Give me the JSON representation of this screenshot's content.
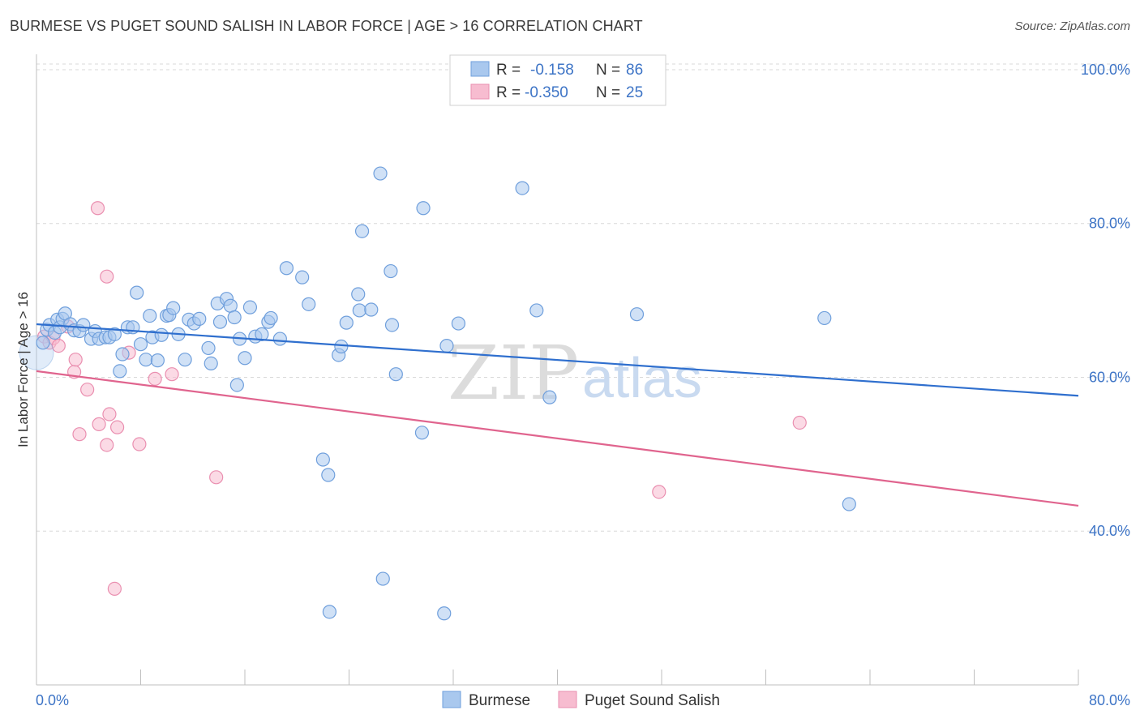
{
  "title": "BURMESE VS PUGET SOUND SALISH IN LABOR FORCE | AGE > 16 CORRELATION CHART",
  "source": "Source: ZipAtlas.com",
  "watermark": {
    "zip": "ZIP",
    "atlas": "atlas"
  },
  "colors": {
    "burmese_fill": "#a9c8ee",
    "burmese_stroke": "#6f9fdc",
    "burmese_line": "#2f6fce",
    "salish_fill": "#f7bcd0",
    "salish_stroke": "#ea8fb0",
    "salish_line": "#e0648e",
    "axis_label": "#3d74c6",
    "grid": "#d8d8d8"
  },
  "legend": {
    "items": [
      {
        "r_label": "R =",
        "r_value": "-0.158",
        "n_label": "N =",
        "n_value": "86"
      },
      {
        "r_label": "R =",
        "r_value": "-0.350",
        "n_label": "N =",
        "n_value": "25"
      }
    ]
  },
  "bottom_legend": {
    "burmese": "Burmese",
    "salish": "Puget Sound Salish"
  },
  "chart_data": {
    "type": "scatter",
    "title": "BURMESE VS PUGET SOUND SALISH IN LABOR FORCE | AGE > 16 CORRELATION CHART",
    "xlabel": "",
    "ylabel": "In Labor Force | Age > 16",
    "xlim": [
      0,
      80
    ],
    "ylim": [
      20,
      102
    ],
    "x_tick_labels": [
      "0.0%",
      "80.0%"
    ],
    "y_ticks": [
      40,
      60,
      80,
      100
    ],
    "y_tick_labels": [
      "40.0%",
      "60.0%",
      "80.0%",
      "100.0%"
    ],
    "grid": true,
    "legend_position": "top-center",
    "series": [
      {
        "name": "Burmese",
        "points": [
          [
            0.5,
            64.5
          ],
          [
            0.8,
            66.2
          ],
          [
            1.0,
            66.8
          ],
          [
            1.4,
            65.8
          ],
          [
            1.6,
            67.5
          ],
          [
            1.8,
            66.5
          ],
          [
            2.0,
            67.6
          ],
          [
            2.2,
            68.3
          ],
          [
            2.6,
            66.9
          ],
          [
            2.9,
            66.1
          ],
          [
            3.3,
            66.0
          ],
          [
            3.6,
            66.8
          ],
          [
            4.2,
            65.0
          ],
          [
            4.5,
            66.0
          ],
          [
            4.8,
            65.0
          ],
          [
            5.3,
            65.2
          ],
          [
            5.6,
            65.2
          ],
          [
            6.0,
            65.6
          ],
          [
            6.4,
            60.8
          ],
          [
            6.6,
            63.0
          ],
          [
            7.0,
            66.5
          ],
          [
            7.4,
            66.5
          ],
          [
            7.7,
            71.0
          ],
          [
            8.0,
            64.3
          ],
          [
            8.4,
            62.3
          ],
          [
            8.7,
            68.0
          ],
          [
            8.9,
            65.2
          ],
          [
            9.3,
            62.2
          ],
          [
            9.6,
            65.5
          ],
          [
            10.0,
            68.0
          ],
          [
            10.2,
            68.1
          ],
          [
            10.5,
            69.0
          ],
          [
            10.9,
            65.6
          ],
          [
            11.4,
            62.3
          ],
          [
            11.7,
            67.5
          ],
          [
            12.1,
            67.0
          ],
          [
            12.5,
            67.6
          ],
          [
            13.2,
            63.8
          ],
          [
            13.4,
            61.8
          ],
          [
            13.9,
            69.6
          ],
          [
            14.1,
            67.2
          ],
          [
            14.6,
            70.2
          ],
          [
            14.9,
            69.3
          ],
          [
            15.2,
            67.8
          ],
          [
            15.4,
            59.0
          ],
          [
            15.6,
            65.0
          ],
          [
            16.0,
            62.5
          ],
          [
            16.4,
            69.1
          ],
          [
            16.8,
            65.3
          ],
          [
            17.3,
            65.6
          ],
          [
            17.8,
            67.2
          ],
          [
            18.0,
            67.7
          ],
          [
            18.7,
            65.0
          ],
          [
            19.2,
            74.2
          ],
          [
            20.4,
            73.0
          ],
          [
            20.9,
            69.5
          ],
          [
            22.0,
            49.3
          ],
          [
            22.4,
            47.3
          ],
          [
            22.5,
            29.5
          ],
          [
            23.2,
            62.9
          ],
          [
            23.4,
            64.0
          ],
          [
            23.8,
            67.1
          ],
          [
            24.7,
            70.8
          ],
          [
            24.8,
            68.7
          ],
          [
            25.0,
            79.0
          ],
          [
            25.7,
            68.8
          ],
          [
            26.4,
            86.5
          ],
          [
            26.6,
            33.8
          ],
          [
            27.2,
            73.8
          ],
          [
            27.3,
            66.8
          ],
          [
            27.6,
            60.4
          ],
          [
            29.7,
            82.0
          ],
          [
            29.6,
            52.8
          ],
          [
            31.3,
            29.3
          ],
          [
            31.5,
            64.1
          ],
          [
            32.4,
            67.0
          ],
          [
            37.3,
            84.6
          ],
          [
            38.4,
            68.7
          ],
          [
            39.4,
            57.4
          ],
          [
            46.1,
            68.2
          ],
          [
            60.5,
            67.7
          ],
          [
            62.4,
            43.5
          ]
        ],
        "trend": {
          "x": [
            0,
            80
          ],
          "y": [
            66.9,
            57.6
          ]
        }
      },
      {
        "name": "Puget Sound Salish",
        "points": [
          [
            0.6,
            65.3
          ],
          [
            1.0,
            64.5
          ],
          [
            1.3,
            65.1
          ],
          [
            1.7,
            64.1
          ],
          [
            2.4,
            66.6
          ],
          [
            2.9,
            60.7
          ],
          [
            3.0,
            62.3
          ],
          [
            3.3,
            52.6
          ],
          [
            3.9,
            58.4
          ],
          [
            4.7,
            82.0
          ],
          [
            4.8,
            53.9
          ],
          [
            5.4,
            73.1
          ],
          [
            5.4,
            51.2
          ],
          [
            5.6,
            55.2
          ],
          [
            6.2,
            53.5
          ],
          [
            6.0,
            32.5
          ],
          [
            7.1,
            63.2
          ],
          [
            7.9,
            51.3
          ],
          [
            9.1,
            59.8
          ],
          [
            10.4,
            60.4
          ],
          [
            13.8,
            47.0
          ],
          [
            47.8,
            45.1
          ],
          [
            58.6,
            54.1
          ]
        ],
        "trend": {
          "x": [
            0,
            80
          ],
          "y": [
            60.8,
            43.3
          ]
        }
      }
    ]
  }
}
